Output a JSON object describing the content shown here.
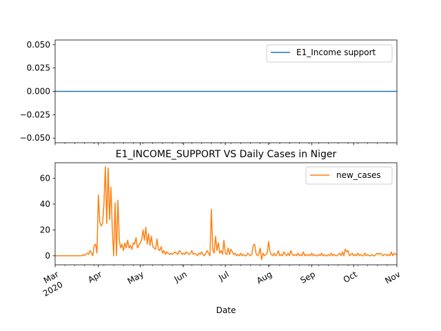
{
  "chart_data": [
    {
      "type": "line",
      "title": "",
      "xlabel": "",
      "ylabel": "",
      "ylim": [
        -0.055,
        0.055
      ],
      "yticks": [
        "0.050",
        "0.025",
        "0.000",
        "−0.025",
        "−0.050"
      ],
      "ytick_values": [
        0.05,
        0.025,
        0.0,
        -0.025,
        -0.05
      ],
      "legend": "upper right",
      "grid": false,
      "series": [
        {
          "name": "E1_Income support",
          "color": "#1f77b4",
          "x": [
            "2020-03-01",
            "2020-11-01"
          ],
          "values": [
            0,
            0
          ]
        }
      ]
    },
    {
      "type": "line",
      "title": "E1_INCOME_SUPPORT VS Daily Cases in Niger",
      "xlabel": "Date",
      "ylabel": "",
      "ylim": [
        -7,
        72
      ],
      "yticks": [
        "0",
        "20",
        "40",
        "60"
      ],
      "ytick_values": [
        0,
        20,
        40,
        60
      ],
      "xlim": [
        "2020-03-01",
        "2020-11-01"
      ],
      "xticks": [
        {
          "date": "2020-03-01",
          "label": "Mar",
          "sublabel": "2020"
        },
        {
          "date": "2020-04-01",
          "label": "Apr"
        },
        {
          "date": "2020-05-01",
          "label": "May"
        },
        {
          "date": "2020-06-01",
          "label": "Jun"
        },
        {
          "date": "2020-07-01",
          "label": "Jul"
        },
        {
          "date": "2020-08-01",
          "label": "Aug"
        },
        {
          "date": "2020-09-01",
          "label": "Sep"
        },
        {
          "date": "2020-10-01",
          "label": "Oct"
        },
        {
          "date": "2020-11-01",
          "label": "Nov"
        }
      ],
      "legend": "upper right",
      "grid": false,
      "series": [
        {
          "name": "new_cases",
          "color": "#ff7f0e",
          "points": [
            [
              "2020-03-01",
              0
            ],
            [
              "2020-03-18",
              0
            ],
            [
              "2020-03-20",
              0
            ],
            [
              "2020-03-21",
              1
            ],
            [
              "2020-03-22",
              0
            ],
            [
              "2020-03-23",
              1
            ],
            [
              "2020-03-24",
              2
            ],
            [
              "2020-03-25",
              1
            ],
            [
              "2020-03-26",
              4
            ],
            [
              "2020-03-27",
              2
            ],
            [
              "2020-03-28",
              0
            ],
            [
              "2020-03-29",
              8
            ],
            [
              "2020-03-30",
              9
            ],
            [
              "2020-03-31",
              2
            ],
            [
              "2020-04-01",
              47
            ],
            [
              "2020-04-02",
              26
            ],
            [
              "2020-04-03",
              23
            ],
            [
              "2020-04-04",
              25
            ],
            [
              "2020-04-05",
              40
            ],
            [
              "2020-04-06",
              69
            ],
            [
              "2020-04-07",
              25
            ],
            [
              "2020-04-08",
              68
            ],
            [
              "2020-04-09",
              28
            ],
            [
              "2020-04-10",
              53
            ],
            [
              "2020-04-11",
              20
            ],
            [
              "2020-04-12",
              0
            ],
            [
              "2020-04-13",
              41
            ],
            [
              "2020-04-14",
              0
            ],
            [
              "2020-04-15",
              43
            ],
            [
              "2020-04-16",
              12
            ],
            [
              "2020-04-17",
              6
            ],
            [
              "2020-04-18",
              9
            ],
            [
              "2020-04-19",
              4
            ],
            [
              "2020-04-20",
              10
            ],
            [
              "2020-04-21",
              6
            ],
            [
              "2020-04-22",
              12
            ],
            [
              "2020-04-23",
              6
            ],
            [
              "2020-04-24",
              8
            ],
            [
              "2020-04-25",
              5
            ],
            [
              "2020-04-26",
              10
            ],
            [
              "2020-04-27",
              9
            ],
            [
              "2020-04-28",
              14
            ],
            [
              "2020-04-29",
              6
            ],
            [
              "2020-04-30",
              8
            ],
            [
              "2020-05-01",
              10
            ],
            [
              "2020-05-02",
              12
            ],
            [
              "2020-05-03",
              20
            ],
            [
              "2020-05-04",
              12
            ],
            [
              "2020-05-05",
              22
            ],
            [
              "2020-05-06",
              9
            ],
            [
              "2020-05-07",
              17
            ],
            [
              "2020-05-08",
              8
            ],
            [
              "2020-05-09",
              15
            ],
            [
              "2020-05-10",
              7
            ],
            [
              "2020-05-11",
              6
            ],
            [
              "2020-05-12",
              5
            ],
            [
              "2020-05-13",
              13
            ],
            [
              "2020-05-14",
              5
            ],
            [
              "2020-05-15",
              4
            ],
            [
              "2020-05-16",
              7
            ],
            [
              "2020-05-17",
              2
            ],
            [
              "2020-05-18",
              4
            ],
            [
              "2020-05-19",
              1
            ],
            [
              "2020-05-20",
              3
            ],
            [
              "2020-05-21",
              2
            ],
            [
              "2020-05-22",
              1
            ],
            [
              "2020-05-23",
              2
            ],
            [
              "2020-05-24",
              1
            ],
            [
              "2020-05-25",
              2
            ],
            [
              "2020-05-26",
              3
            ],
            [
              "2020-05-27",
              2
            ],
            [
              "2020-05-28",
              1
            ],
            [
              "2020-05-29",
              4
            ],
            [
              "2020-05-30",
              3
            ],
            [
              "2020-05-31",
              1
            ],
            [
              "2020-06-01",
              2
            ],
            [
              "2020-06-02",
              1
            ],
            [
              "2020-06-03",
              3
            ],
            [
              "2020-06-04",
              2
            ],
            [
              "2020-06-05",
              1
            ],
            [
              "2020-06-06",
              2
            ],
            [
              "2020-06-07",
              4
            ],
            [
              "2020-06-08",
              1
            ],
            [
              "2020-06-09",
              2
            ],
            [
              "2020-06-10",
              1
            ],
            [
              "2020-06-11",
              0
            ],
            [
              "2020-06-12",
              2
            ],
            [
              "2020-06-13",
              1
            ],
            [
              "2020-06-14",
              3
            ],
            [
              "2020-06-15",
              1
            ],
            [
              "2020-06-16",
              0
            ],
            [
              "2020-06-17",
              2
            ],
            [
              "2020-06-18",
              4
            ],
            [
              "2020-06-19",
              2
            ],
            [
              "2020-06-20",
              0
            ],
            [
              "2020-06-21",
              36
            ],
            [
              "2020-06-22",
              5
            ],
            [
              "2020-06-23",
              2
            ],
            [
              "2020-06-24",
              15
            ],
            [
              "2020-06-25",
              4
            ],
            [
              "2020-06-26",
              10
            ],
            [
              "2020-06-27",
              2
            ],
            [
              "2020-06-28",
              4
            ],
            [
              "2020-06-29",
              1
            ],
            [
              "2020-06-30",
              12
            ],
            [
              "2020-07-01",
              2
            ],
            [
              "2020-07-02",
              1
            ],
            [
              "2020-07-03",
              6
            ],
            [
              "2020-07-04",
              1
            ],
            [
              "2020-07-05",
              5
            ],
            [
              "2020-07-06",
              3
            ],
            [
              "2020-07-07",
              1
            ],
            [
              "2020-07-08",
              2
            ],
            [
              "2020-07-09",
              0
            ],
            [
              "2020-07-10",
              1
            ],
            [
              "2020-07-11",
              0
            ],
            [
              "2020-07-12",
              2
            ],
            [
              "2020-07-13",
              0
            ],
            [
              "2020-07-14",
              1
            ],
            [
              "2020-07-15",
              0
            ],
            [
              "2020-07-16",
              0
            ],
            [
              "2020-07-17",
              2
            ],
            [
              "2020-07-18",
              1
            ],
            [
              "2020-07-19",
              0
            ],
            [
              "2020-07-20",
              1
            ],
            [
              "2020-07-21",
              8
            ],
            [
              "2020-07-22",
              9
            ],
            [
              "2020-07-23",
              2
            ],
            [
              "2020-07-24",
              0
            ],
            [
              "2020-07-25",
              1
            ],
            [
              "2020-07-26",
              6
            ],
            [
              "2020-07-27",
              -3
            ],
            [
              "2020-07-28",
              2
            ],
            [
              "2020-07-29",
              0
            ],
            [
              "2020-07-30",
              1
            ],
            [
              "2020-07-31",
              2
            ],
            [
              "2020-08-01",
              11
            ],
            [
              "2020-08-02",
              3
            ],
            [
              "2020-08-03",
              1
            ],
            [
              "2020-08-04",
              0
            ],
            [
              "2020-08-05",
              2
            ],
            [
              "2020-08-06",
              0
            ],
            [
              "2020-08-07",
              1
            ],
            [
              "2020-08-08",
              4
            ],
            [
              "2020-08-09",
              0
            ],
            [
              "2020-08-10",
              1
            ],
            [
              "2020-08-11",
              0
            ],
            [
              "2020-08-12",
              3
            ],
            [
              "2020-08-13",
              1
            ],
            [
              "2020-08-14",
              0
            ],
            [
              "2020-08-15",
              2
            ],
            [
              "2020-08-16",
              0
            ],
            [
              "2020-08-17",
              4
            ],
            [
              "2020-08-18",
              1
            ],
            [
              "2020-08-19",
              0
            ],
            [
              "2020-08-20",
              1
            ],
            [
              "2020-08-21",
              0
            ],
            [
              "2020-08-22",
              2
            ],
            [
              "2020-08-23",
              0
            ],
            [
              "2020-08-24",
              1
            ],
            [
              "2020-08-25",
              0
            ],
            [
              "2020-08-26",
              3
            ],
            [
              "2020-08-27",
              0
            ],
            [
              "2020-08-28",
              1
            ],
            [
              "2020-08-29",
              0
            ],
            [
              "2020-08-30",
              1
            ],
            [
              "2020-08-31",
              0
            ],
            [
              "2020-09-01",
              2
            ],
            [
              "2020-09-02",
              0
            ],
            [
              "2020-09-03",
              1
            ],
            [
              "2020-09-04",
              0
            ],
            [
              "2020-09-05",
              0
            ],
            [
              "2020-09-06",
              1
            ],
            [
              "2020-09-07",
              0
            ],
            [
              "2020-09-08",
              2
            ],
            [
              "2020-09-09",
              0
            ],
            [
              "2020-09-10",
              1
            ],
            [
              "2020-09-11",
              0
            ],
            [
              "2020-09-12",
              0
            ],
            [
              "2020-09-13",
              1
            ],
            [
              "2020-09-14",
              0
            ],
            [
              "2020-09-15",
              2
            ],
            [
              "2020-09-16",
              0
            ],
            [
              "2020-09-17",
              1
            ],
            [
              "2020-09-18",
              0
            ],
            [
              "2020-09-19",
              0
            ],
            [
              "2020-09-20",
              1
            ],
            [
              "2020-09-21",
              2
            ],
            [
              "2020-09-22",
              0
            ],
            [
              "2020-09-23",
              3
            ],
            [
              "2020-09-24",
              0
            ],
            [
              "2020-09-25",
              5
            ],
            [
              "2020-09-26",
              3
            ],
            [
              "2020-09-27",
              4
            ],
            [
              "2020-09-28",
              0
            ],
            [
              "2020-09-29",
              1
            ],
            [
              "2020-09-30",
              2
            ],
            [
              "2020-10-01",
              0
            ],
            [
              "2020-10-02",
              1
            ],
            [
              "2020-10-03",
              0
            ],
            [
              "2020-10-04",
              2
            ],
            [
              "2020-10-05",
              0
            ],
            [
              "2020-10-06",
              1
            ],
            [
              "2020-10-07",
              0
            ],
            [
              "2020-10-08",
              0
            ],
            [
              "2020-10-09",
              2
            ],
            [
              "2020-10-10",
              0
            ],
            [
              "2020-10-11",
              1
            ],
            [
              "2020-10-12",
              0
            ],
            [
              "2020-10-13",
              0
            ],
            [
              "2020-10-14",
              1
            ],
            [
              "2020-10-15",
              0
            ],
            [
              "2020-10-16",
              0
            ],
            [
              "2020-10-17",
              1
            ],
            [
              "2020-10-18",
              2
            ],
            [
              "2020-10-19",
              1
            ],
            [
              "2020-10-20",
              2
            ],
            [
              "2020-10-21",
              1
            ],
            [
              "2020-10-22",
              0
            ],
            [
              "2020-10-23",
              1
            ],
            [
              "2020-10-24",
              1
            ],
            [
              "2020-10-25",
              0
            ],
            [
              "2020-10-26",
              1
            ],
            [
              "2020-10-27",
              0
            ],
            [
              "2020-10-28",
              3
            ],
            [
              "2020-10-29",
              0
            ],
            [
              "2020-10-30",
              2
            ],
            [
              "2020-10-31",
              1
            ],
            [
              "2020-11-01",
              1
            ]
          ]
        }
      ]
    }
  ]
}
